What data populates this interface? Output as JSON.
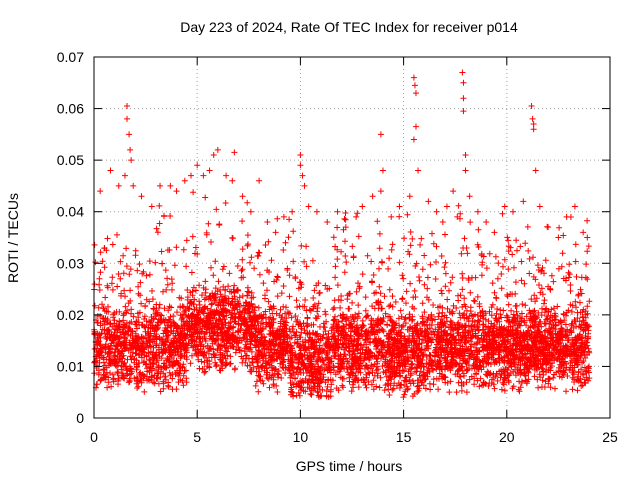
{
  "chart_data": {
    "type": "scatter",
    "title": "Day 223 of 2024, Rate Of TEC Index for receiver p014",
    "xlabel": "GPS time / hours",
    "ylabel": "ROTI / TECUs",
    "xlim": [
      0,
      25
    ],
    "ylim": [
      0,
      0.07
    ],
    "xticks": [
      0,
      5,
      10,
      15,
      20,
      25
    ],
    "xtick_labels": [
      "0",
      "5",
      "10",
      "15",
      "20",
      "25"
    ],
    "yticks": [
      0,
      0.01,
      0.02,
      0.03,
      0.04,
      0.05,
      0.06,
      0.07
    ],
    "ytick_labels": [
      "0",
      "0.01",
      "0.02",
      "0.03",
      "0.04",
      "0.05",
      "0.06",
      "0.07"
    ],
    "grid": true,
    "marker": "+",
    "marker_color": "#ff0000",
    "series": [
      {
        "name": "ROTI",
        "points": [
          [
            0.3,
            0.044
          ],
          [
            0.8,
            0.048
          ],
          [
            1.2,
            0.045
          ],
          [
            1.6,
            0.058
          ],
          [
            1.6,
            0.0605
          ],
          [
            1.7,
            0.055
          ],
          [
            1.75,
            0.052
          ],
          [
            1.8,
            0.05
          ],
          [
            1.5,
            0.047
          ],
          [
            1.9,
            0.045
          ],
          [
            2.3,
            0.043
          ],
          [
            2.8,
            0.041
          ],
          [
            3.2,
            0.045
          ],
          [
            3.7,
            0.045
          ],
          [
            4.0,
            0.044
          ],
          [
            4.4,
            0.046
          ],
          [
            4.7,
            0.047
          ],
          [
            5.0,
            0.049
          ],
          [
            5.3,
            0.047
          ],
          [
            5.6,
            0.048
          ],
          [
            5.8,
            0.051
          ],
          [
            6.0,
            0.052
          ],
          [
            6.4,
            0.047
          ],
          [
            6.7,
            0.046
          ],
          [
            6.8,
            0.0515
          ],
          [
            7.2,
            0.043
          ],
          [
            7.6,
            0.04
          ],
          [
            8.0,
            0.046
          ],
          [
            8.4,
            0.038
          ],
          [
            8.8,
            0.036
          ],
          [
            9.2,
            0.039
          ],
          [
            9.6,
            0.04
          ],
          [
            10.0,
            0.051
          ],
          [
            10.0,
            0.049
          ],
          [
            10.1,
            0.047
          ],
          [
            10.2,
            0.045
          ],
          [
            10.4,
            0.041
          ],
          [
            10.8,
            0.04
          ],
          [
            11.3,
            0.038
          ],
          [
            11.8,
            0.04
          ],
          [
            12.2,
            0.037
          ],
          [
            12.7,
            0.039
          ],
          [
            13.0,
            0.041
          ],
          [
            13.5,
            0.043
          ],
          [
            13.9,
            0.055
          ],
          [
            14.0,
            0.048
          ],
          [
            13.9,
            0.044
          ],
          [
            14.4,
            0.039
          ],
          [
            14.8,
            0.041
          ],
          [
            15.3,
            0.043
          ],
          [
            15.5,
            0.066
          ],
          [
            15.55,
            0.0645
          ],
          [
            15.6,
            0.063
          ],
          [
            15.6,
            0.0565
          ],
          [
            15.5,
            0.054
          ],
          [
            15.7,
            0.048
          ],
          [
            16.2,
            0.042
          ],
          [
            16.6,
            0.04
          ],
          [
            16.9,
            0.038
          ],
          [
            17.1,
            0.041
          ],
          [
            17.4,
            0.044
          ],
          [
            17.6,
            0.039
          ],
          [
            17.85,
            0.067
          ],
          [
            17.9,
            0.065
          ],
          [
            17.9,
            0.062
          ],
          [
            17.9,
            0.0595
          ],
          [
            18.0,
            0.051
          ],
          [
            18.0,
            0.048
          ],
          [
            18.2,
            0.043
          ],
          [
            18.6,
            0.04
          ],
          [
            19.0,
            0.038
          ],
          [
            19.4,
            0.036
          ],
          [
            19.9,
            0.041
          ],
          [
            20.3,
            0.04
          ],
          [
            20.8,
            0.042
          ],
          [
            21.2,
            0.0605
          ],
          [
            21.25,
            0.058
          ],
          [
            21.3,
            0.057
          ],
          [
            21.3,
            0.056
          ],
          [
            21.4,
            0.048
          ],
          [
            21.6,
            0.041
          ],
          [
            22.0,
            0.037
          ],
          [
            22.5,
            0.035
          ],
          [
            22.9,
            0.039
          ],
          [
            23.3,
            0.041
          ],
          [
            23.7,
            0.036
          ],
          [
            23.9,
            0.035
          ]
        ]
      }
    ]
  }
}
